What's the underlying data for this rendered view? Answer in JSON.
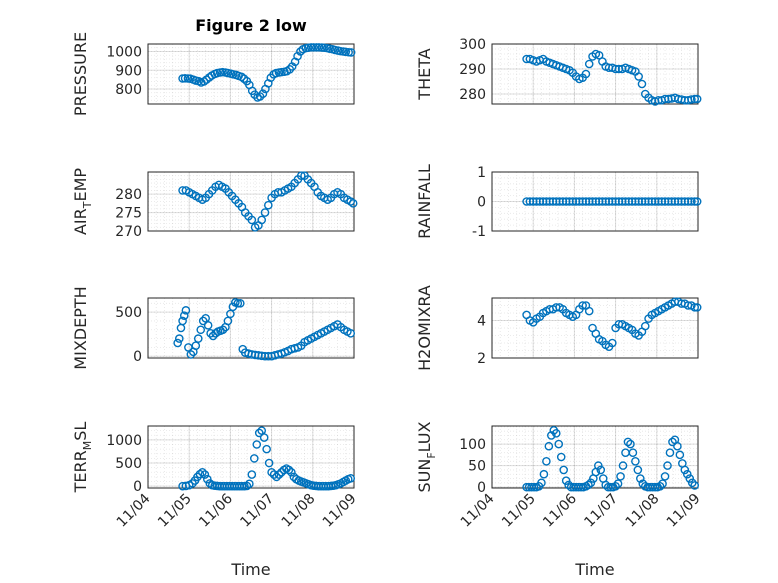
{
  "figure": {
    "title": "Figure 2 low"
  },
  "colors": {
    "marker": "#0072BD",
    "axis": "#262626",
    "background": "#ffffff"
  },
  "x_ticks": [
    "11/04",
    "11/05",
    "11/06",
    "11/07",
    "11/08",
    "11/09"
  ],
  "x_label": "Time",
  "chart_data": [
    {
      "type": "scatter",
      "ylabel": "PRESSURE",
      "ylabel_sub": "",
      "ylabel_rest": "",
      "title": "Figure 2 low",
      "ylim": [
        720,
        1040
      ],
      "yticks": [
        800,
        900,
        1000
      ],
      "xlim": [
        0,
        5
      ],
      "grid": true,
      "x": [
        0.84,
        0.9,
        0.97,
        1.03,
        1.1,
        1.16,
        1.23,
        1.29,
        1.36,
        1.42,
        1.49,
        1.55,
        1.62,
        1.68,
        1.75,
        1.81,
        1.88,
        1.94,
        2.01,
        2.07,
        2.14,
        2.2,
        2.27,
        2.33,
        2.4,
        2.46,
        2.53,
        2.59,
        2.66,
        2.72,
        2.79,
        2.85,
        2.92,
        2.98,
        3.05,
        3.11,
        3.18,
        3.24,
        3.31,
        3.37,
        3.44,
        3.5,
        3.57,
        3.63,
        3.7,
        3.76,
        3.83,
        3.89,
        3.96,
        4.02,
        4.09,
        4.15,
        4.22,
        4.28,
        4.35,
        4.41,
        4.48,
        4.54,
        4.61,
        4.67,
        4.74,
        4.8,
        4.87,
        4.93
      ],
      "y": [
        856,
        857,
        856,
        855,
        850,
        845,
        842,
        835,
        840,
        850,
        862,
        872,
        880,
        885,
        888,
        890,
        888,
        885,
        882,
        878,
        875,
        870,
        865,
        855,
        842,
        822,
        790,
        770,
        755,
        760,
        775,
        800,
        830,
        860,
        878,
        885,
        888,
        890,
        892,
        895,
        905,
        920,
        945,
        975,
        1000,
        1012,
        1018,
        1020,
        1022,
        1022,
        1022,
        1022,
        1021,
        1020,
        1018,
        1015,
        1012,
        1008,
        1005,
        1002,
        1000,
        998,
        996,
        995
      ]
    },
    {
      "type": "scatter",
      "ylabel": "THETA",
      "ylabel_sub": "",
      "ylabel_rest": "",
      "ylim": [
        276,
        300
      ],
      "yticks": [
        280,
        290,
        300
      ],
      "xlim": [
        0,
        5
      ],
      "grid": true,
      "x": [
        0.84,
        0.92,
        1.0,
        1.08,
        1.16,
        1.24,
        1.32,
        1.4,
        1.48,
        1.56,
        1.64,
        1.72,
        1.8,
        1.88,
        1.96,
        2.04,
        2.12,
        2.2,
        2.28,
        2.36,
        2.44,
        2.52,
        2.6,
        2.68,
        2.76,
        2.84,
        2.92,
        3.0,
        3.08,
        3.16,
        3.24,
        3.32,
        3.4,
        3.48,
        3.56,
        3.64,
        3.72,
        3.8,
        3.88,
        3.96,
        4.04,
        4.12,
        4.2,
        4.28,
        4.36,
        4.44,
        4.52,
        4.6,
        4.68,
        4.76,
        4.84,
        4.92,
        4.98
      ],
      "y": [
        294,
        294,
        293.5,
        293,
        293.5,
        294,
        293,
        292.5,
        292,
        291.5,
        291,
        290.5,
        290,
        289.5,
        288.5,
        287,
        286,
        286.5,
        288,
        292,
        295,
        296,
        295.5,
        293,
        291,
        290.5,
        290.5,
        290,
        290,
        290,
        290.5,
        290,
        289.5,
        289,
        287,
        284,
        280,
        278.5,
        277.5,
        277,
        277.5,
        277.5,
        278,
        278,
        278.2,
        278.5,
        278,
        277.8,
        277.5,
        277.5,
        277.8,
        278,
        278
      ]
    },
    {
      "type": "scatter",
      "ylabel": "AIR",
      "ylabel_sub": "T",
      "ylabel_rest": "EMP",
      "ylim": [
        270,
        286
      ],
      "yticks": [
        270,
        275,
        280
      ],
      "xlim": [
        0,
        5
      ],
      "grid": true,
      "x": [
        0.84,
        0.92,
        1.0,
        1.08,
        1.16,
        1.24,
        1.32,
        1.4,
        1.48,
        1.56,
        1.64,
        1.72,
        1.8,
        1.88,
        1.96,
        2.04,
        2.12,
        2.2,
        2.28,
        2.36,
        2.44,
        2.52,
        2.6,
        2.68,
        2.76,
        2.84,
        2.92,
        3.0,
        3.08,
        3.16,
        3.24,
        3.32,
        3.4,
        3.48,
        3.56,
        3.64,
        3.72,
        3.8,
        3.88,
        3.96,
        4.04,
        4.12,
        4.2,
        4.28,
        4.36,
        4.44,
        4.52,
        4.6,
        4.68,
        4.76,
        4.84,
        4.92,
        4.98
      ],
      "y": [
        281,
        281,
        280.5,
        280,
        279.5,
        279,
        278.5,
        279,
        280,
        281,
        282,
        282.5,
        282,
        281.5,
        280.5,
        279.5,
        278.5,
        277.5,
        276.5,
        275,
        274,
        273,
        271,
        271.5,
        273,
        275,
        277,
        279,
        280,
        280.5,
        280.5,
        281,
        281.5,
        282,
        283,
        284,
        285,
        285,
        284,
        283,
        282,
        280.5,
        279.5,
        279,
        278.5,
        279,
        280,
        280.5,
        280,
        279,
        278.5,
        278,
        277.5
      ]
    },
    {
      "type": "scatter",
      "ylabel": "RAINFALL",
      "ylabel_sub": "",
      "ylabel_rest": "",
      "ylim": [
        -1,
        1
      ],
      "yticks": [
        -1,
        0,
        1
      ],
      "xlim": [
        0,
        5
      ],
      "grid": true,
      "x": [
        0.84,
        0.92,
        1.0,
        1.08,
        1.16,
        1.24,
        1.32,
        1.4,
        1.48,
        1.56,
        1.64,
        1.72,
        1.8,
        1.88,
        1.96,
        2.04,
        2.12,
        2.2,
        2.28,
        2.36,
        2.44,
        2.52,
        2.6,
        2.68,
        2.76,
        2.84,
        2.92,
        3.0,
        3.08,
        3.16,
        3.24,
        3.32,
        3.4,
        3.48,
        3.56,
        3.64,
        3.72,
        3.8,
        3.88,
        3.96,
        4.04,
        4.12,
        4.2,
        4.28,
        4.36,
        4.44,
        4.52,
        4.6,
        4.68,
        4.76,
        4.84,
        4.92,
        4.98
      ],
      "y": [
        0,
        0,
        0,
        0,
        0,
        0,
        0,
        0,
        0,
        0,
        0,
        0,
        0,
        0,
        0,
        0,
        0,
        0,
        0,
        0,
        0,
        0,
        0,
        0,
        0,
        0,
        0,
        0,
        0,
        0,
        0,
        0,
        0,
        0,
        0,
        0,
        0,
        0,
        0,
        0,
        0,
        0,
        0,
        0,
        0,
        0,
        0,
        0,
        0,
        0,
        0,
        0,
        0
      ]
    },
    {
      "type": "scatter",
      "ylabel": "MIXDEPTH",
      "ylabel_sub": "",
      "ylabel_rest": "",
      "ylim": [
        -20,
        660
      ],
      "yticks": [
        0,
        500
      ],
      "xlim": [
        0,
        5
      ],
      "grid": true,
      "x": [
        0.72,
        0.76,
        0.8,
        0.84,
        0.88,
        0.92,
        0.98,
        1.04,
        1.1,
        1.16,
        1.22,
        1.28,
        1.34,
        1.4,
        1.46,
        1.52,
        1.58,
        1.64,
        1.7,
        1.76,
        1.82,
        1.88,
        1.94,
        2.0,
        2.06,
        2.12,
        2.18,
        2.24,
        2.3,
        2.36,
        2.44,
        2.52,
        2.6,
        2.68,
        2.76,
        2.84,
        2.92,
        3.0,
        3.08,
        3.16,
        3.24,
        3.32,
        3.4,
        3.48,
        3.56,
        3.64,
        3.72,
        3.8,
        3.88,
        3.96,
        4.04,
        4.12,
        4.2,
        4.28,
        4.36,
        4.44,
        4.52,
        4.6,
        4.68,
        4.76,
        4.84,
        4.92
      ],
      "y": [
        150,
        200,
        320,
        400,
        460,
        520,
        100,
        20,
        50,
        120,
        200,
        300,
        400,
        430,
        350,
        260,
        230,
        260,
        280,
        290,
        300,
        330,
        400,
        480,
        560,
        610,
        600,
        600,
        80,
        40,
        30,
        20,
        15,
        10,
        5,
        0,
        0,
        0,
        10,
        20,
        30,
        45,
        60,
        80,
        90,
        100,
        120,
        160,
        180,
        200,
        220,
        240,
        260,
        280,
        300,
        320,
        340,
        360,
        330,
        300,
        280,
        260
      ]
    },
    {
      "type": "scatter",
      "ylabel": "H2OMIXRA",
      "ylabel_sub": "",
      "ylabel_rest": "",
      "ylim": [
        2,
        5.2
      ],
      "yticks": [
        2,
        4
      ],
      "xlim": [
        0,
        5
      ],
      "grid": true,
      "x": [
        0.84,
        0.92,
        1.0,
        1.08,
        1.16,
        1.24,
        1.32,
        1.4,
        1.48,
        1.56,
        1.64,
        1.72,
        1.8,
        1.88,
        1.96,
        2.04,
        2.12,
        2.2,
        2.28,
        2.36,
        2.44,
        2.52,
        2.6,
        2.68,
        2.76,
        2.84,
        2.92,
        3.0,
        3.08,
        3.16,
        3.24,
        3.32,
        3.4,
        3.48,
        3.56,
        3.64,
        3.72,
        3.8,
        3.88,
        3.96,
        4.04,
        4.12,
        4.2,
        4.28,
        4.36,
        4.44,
        4.52,
        4.6,
        4.68,
        4.76,
        4.84,
        4.92,
        4.98
      ],
      "y": [
        4.3,
        4.0,
        3.9,
        4.1,
        4.2,
        4.4,
        4.5,
        4.6,
        4.6,
        4.7,
        4.7,
        4.6,
        4.4,
        4.3,
        4.2,
        4.3,
        4.6,
        4.8,
        4.8,
        4.5,
        3.6,
        3.3,
        3.0,
        2.9,
        2.7,
        2.6,
        2.8,
        3.6,
        3.8,
        3.8,
        3.7,
        3.6,
        3.5,
        3.3,
        3.2,
        3.4,
        3.7,
        4.1,
        4.3,
        4.4,
        4.5,
        4.6,
        4.7,
        4.8,
        4.9,
        5.0,
        5.0,
        4.9,
        4.9,
        4.8,
        4.8,
        4.7,
        4.7
      ]
    },
    {
      "type": "scatter",
      "ylabel": "TERR",
      "ylabel_sub": "M",
      "ylabel_rest": "SL",
      "ylim": [
        -40,
        1300
      ],
      "yticks": [
        0,
        500,
        1000
      ],
      "xlim": [
        0,
        5
      ],
      "grid": true,
      "x": [
        0.84,
        0.92,
        1.0,
        1.08,
        1.14,
        1.2,
        1.26,
        1.32,
        1.38,
        1.44,
        1.5,
        1.56,
        1.62,
        1.68,
        1.74,
        1.8,
        1.86,
        1.92,
        1.98,
        2.04,
        2.1,
        2.16,
        2.22,
        2.28,
        2.34,
        2.4,
        2.46,
        2.52,
        2.58,
        2.64,
        2.7,
        2.76,
        2.82,
        2.88,
        2.94,
        3.0,
        3.06,
        3.12,
        3.18,
        3.24,
        3.3,
        3.36,
        3.42,
        3.48,
        3.54,
        3.6,
        3.66,
        3.72,
        3.78,
        3.84,
        3.9,
        3.96,
        4.02,
        4.08,
        4.14,
        4.2,
        4.26,
        4.32,
        4.38,
        4.44,
        4.5,
        4.56,
        4.62,
        4.68,
        4.74,
        4.8,
        4.86,
        4.92
      ],
      "y": [
        0,
        5,
        20,
        60,
        120,
        200,
        260,
        300,
        250,
        150,
        60,
        20,
        10,
        5,
        0,
        0,
        0,
        0,
        0,
        0,
        0,
        0,
        0,
        0,
        0,
        5,
        50,
        250,
        600,
        900,
        1150,
        1200,
        1050,
        800,
        500,
        300,
        250,
        200,
        250,
        300,
        350,
        380,
        350,
        300,
        200,
        150,
        120,
        100,
        80,
        60,
        40,
        20,
        10,
        5,
        0,
        0,
        0,
        0,
        0,
        5,
        10,
        20,
        40,
        60,
        90,
        120,
        150,
        170
      ]
    },
    {
      "type": "scatter",
      "ylabel": "SUN",
      "ylabel_sub": "F",
      "ylabel_rest": "LUX",
      "ylim": [
        -2,
        142
      ],
      "yticks": [
        0,
        50,
        100
      ],
      "xlim": [
        0,
        5
      ],
      "grid": true,
      "x": [
        0.84,
        0.9,
        0.96,
        1.02,
        1.08,
        1.14,
        1.2,
        1.26,
        1.32,
        1.38,
        1.44,
        1.5,
        1.56,
        1.62,
        1.68,
        1.74,
        1.8,
        1.86,
        1.92,
        1.98,
        2.04,
        2.1,
        2.16,
        2.22,
        2.28,
        2.34,
        2.4,
        2.46,
        2.52,
        2.58,
        2.64,
        2.7,
        2.76,
        2.82,
        2.88,
        2.94,
        3.0,
        3.06,
        3.12,
        3.18,
        3.24,
        3.3,
        3.36,
        3.42,
        3.48,
        3.54,
        3.6,
        3.66,
        3.72,
        3.78,
        3.84,
        3.9,
        3.96,
        4.02,
        4.08,
        4.14,
        4.2,
        4.26,
        4.32,
        4.38,
        4.44,
        4.5,
        4.56,
        4.62,
        4.68,
        4.74,
        4.8,
        4.86,
        4.92
      ],
      "y": [
        0,
        0,
        0,
        0,
        0,
        2,
        10,
        30,
        60,
        95,
        120,
        132,
        125,
        100,
        70,
        40,
        15,
        5,
        0,
        0,
        0,
        0,
        0,
        0,
        2,
        5,
        10,
        20,
        35,
        50,
        40,
        20,
        5,
        0,
        0,
        0,
        2,
        8,
        25,
        50,
        80,
        105,
        100,
        80,
        60,
        40,
        20,
        8,
        2,
        0,
        0,
        0,
        0,
        0,
        2,
        8,
        25,
        50,
        80,
        105,
        110,
        95,
        75,
        55,
        40,
        30,
        20,
        10,
        4
      ]
    }
  ]
}
